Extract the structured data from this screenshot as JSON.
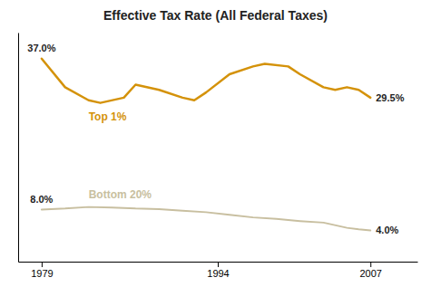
{
  "chart_data": {
    "type": "line",
    "title": "Effective Tax Rate (All Federal Taxes)",
    "series": [
      {
        "name": "Top 1%",
        "color": "#D4920A",
        "x": [
          1979,
          1981,
          1983,
          1984,
          1986,
          1987,
          1989,
          1991,
          1992,
          1993,
          1995,
          1997,
          1998,
          2000,
          2001,
          2003,
          2004,
          2005,
          2006,
          2007
        ],
        "values": [
          37.0,
          31.5,
          29.0,
          28.5,
          29.5,
          32.0,
          31.0,
          29.5,
          29.0,
          30.5,
          34.0,
          35.5,
          36.0,
          35.5,
          34.0,
          31.5,
          31.0,
          31.5,
          31.0,
          29.5
        ],
        "value_labels": [
          "37.0%",
          null,
          null,
          null,
          null,
          null,
          null,
          null,
          null,
          null,
          null,
          null,
          null,
          null,
          null,
          null,
          null,
          null,
          null,
          "29.5%"
        ]
      },
      {
        "name": "Bottom 20%",
        "color": "#C8BFA0",
        "x": [
          1979,
          1981,
          1983,
          1985,
          1987,
          1989,
          1991,
          1993,
          1995,
          1997,
          1999,
          2001,
          2003,
          2005,
          2006,
          2007
        ],
        "values": [
          8.0,
          8.2,
          8.5,
          8.4,
          8.2,
          8.1,
          7.8,
          7.5,
          7.0,
          6.5,
          6.2,
          5.8,
          5.5,
          4.5,
          4.2,
          4.0
        ],
        "value_labels": [
          "8.0%",
          null,
          null,
          null,
          null,
          null,
          null,
          null,
          null,
          null,
          null,
          null,
          null,
          null,
          null,
          "4.0%"
        ]
      }
    ],
    "xlim": [
      1977,
      2011
    ],
    "xticks": [
      1979,
      1994,
      2007
    ],
    "ylim": [
      -2,
      42
    ],
    "grid": false,
    "tick_labels": "x"
  }
}
